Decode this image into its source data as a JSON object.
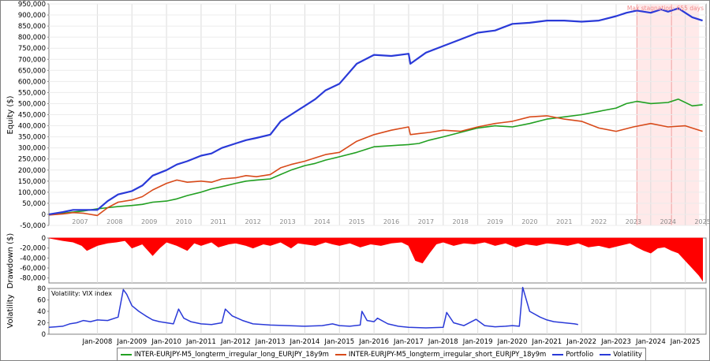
{
  "chart_data": [
    {
      "type": "line",
      "ylabel": "Equity ($)",
      "ylim": [
        -50000,
        950000
      ],
      "yticks": [
        950000,
        900000,
        850000,
        800000,
        750000,
        700000,
        650000,
        600000,
        550000,
        500000,
        450000,
        400000,
        350000,
        300000,
        250000,
        200000,
        150000,
        100000,
        50000,
        0,
        -50000
      ],
      "ytick_labels": [
        "950,000",
        "900,000",
        "850,000",
        "800,000",
        "750,000",
        "700,000",
        "650,000",
        "600,000",
        "550,000",
        "500,000",
        "450,000",
        "400,000",
        "350,000",
        "300,000",
        "250,000",
        "200,000",
        "150,000",
        "100,000",
        "50,000",
        "0",
        "-50,000"
      ],
      "year_labels": [
        "2007",
        "2008",
        "2009",
        "2010",
        "2011",
        "2012",
        "2013",
        "2014",
        "2015",
        "2016",
        "2017",
        "2018",
        "2019",
        "2020",
        "2021",
        "2022",
        "2023",
        "2024",
        "2025"
      ],
      "annotation": "Max stagnation: 655 days",
      "stagnation_range": [
        2023.6,
        2025.4
      ],
      "grid": true,
      "series": [
        {
          "name": "INTER-EURJPY-M5_longterm_irregular_long_EURJPY_18y9m",
          "color": "#22a022",
          "x": [
            2006.6,
            2007.0,
            2007.3,
            2007.6,
            2008.0,
            2008.3,
            2008.6,
            2009.0,
            2009.3,
            2009.6,
            2010.0,
            2010.3,
            2010.6,
            2011.0,
            2011.3,
            2011.6,
            2012.0,
            2012.3,
            2012.6,
            2013.0,
            2013.3,
            2013.6,
            2014.0,
            2014.3,
            2014.6,
            2015.0,
            2015.5,
            2016.0,
            2016.5,
            2017.0,
            2017.3,
            2017.6,
            2018.0,
            2018.5,
            2019.0,
            2019.5,
            2020.0,
            2020.5,
            2021.0,
            2021.5,
            2022.0,
            2022.5,
            2023.0,
            2023.3,
            2023.6,
            2024.0,
            2024.5,
            2024.8,
            2025.2,
            2025.5
          ],
          "y": [
            -2000,
            5000,
            10000,
            15000,
            25000,
            30000,
            35000,
            40000,
            45000,
            55000,
            60000,
            70000,
            85000,
            100000,
            115000,
            125000,
            140000,
            150000,
            155000,
            160000,
            180000,
            200000,
            220000,
            230000,
            245000,
            260000,
            280000,
            305000,
            310000,
            315000,
            320000,
            335000,
            350000,
            370000,
            390000,
            400000,
            395000,
            410000,
            430000,
            440000,
            450000,
            465000,
            480000,
            500000,
            510000,
            500000,
            505000,
            520000,
            490000,
            495000
          ]
        },
        {
          "name": "INTER-EURJPY-M5_longterm_irregular_short_EURJPY_18y9m",
          "color": "#d84a1a",
          "x": [
            2006.6,
            2007.0,
            2007.3,
            2007.6,
            2008.0,
            2008.3,
            2008.6,
            2009.0,
            2009.3,
            2009.6,
            2010.0,
            2010.3,
            2010.6,
            2011.0,
            2011.3,
            2011.6,
            2012.0,
            2012.3,
            2012.6,
            2013.0,
            2013.3,
            2013.6,
            2014.0,
            2014.3,
            2014.6,
            2015.0,
            2015.5,
            2016.0,
            2016.5,
            2017.0,
            2017.05,
            2017.3,
            2017.6,
            2018.0,
            2018.5,
            2019.0,
            2019.5,
            2020.0,
            2020.5,
            2021.0,
            2021.5,
            2022.0,
            2022.5,
            2023.0,
            2023.5,
            2024.0,
            2024.5,
            2025.0,
            2025.5
          ],
          "y": [
            -3000,
            2000,
            8000,
            5000,
            -5000,
            30000,
            55000,
            65000,
            80000,
            110000,
            140000,
            155000,
            145000,
            150000,
            145000,
            160000,
            165000,
            175000,
            170000,
            180000,
            210000,
            225000,
            240000,
            255000,
            270000,
            280000,
            330000,
            360000,
            380000,
            395000,
            360000,
            365000,
            370000,
            380000,
            375000,
            395000,
            410000,
            420000,
            440000,
            445000,
            430000,
            420000,
            390000,
            375000,
            395000,
            410000,
            395000,
            400000,
            375000
          ]
        },
        {
          "name": "Portfolio",
          "color": "#2a3ad8",
          "x": [
            2006.6,
            2007.0,
            2007.3,
            2007.6,
            2008.0,
            2008.3,
            2008.6,
            2009.0,
            2009.3,
            2009.6,
            2010.0,
            2010.3,
            2010.6,
            2011.0,
            2011.3,
            2011.6,
            2012.0,
            2012.3,
            2012.6,
            2013.0,
            2013.3,
            2013.6,
            2014.0,
            2014.3,
            2014.6,
            2015.0,
            2015.5,
            2016.0,
            2016.5,
            2017.0,
            2017.05,
            2017.5,
            2018.0,
            2018.5,
            2019.0,
            2019.5,
            2020.0,
            2020.5,
            2021.0,
            2021.5,
            2022.0,
            2022.5,
            2023.0,
            2023.3,
            2023.6,
            2024.0,
            2024.3,
            2024.5,
            2024.8,
            2025.2,
            2025.5
          ],
          "y": [
            0,
            10000,
            20000,
            20000,
            20000,
            60000,
            90000,
            105000,
            130000,
            175000,
            200000,
            225000,
            240000,
            265000,
            275000,
            300000,
            320000,
            335000,
            345000,
            360000,
            420000,
            450000,
            490000,
            520000,
            560000,
            590000,
            680000,
            720000,
            715000,
            725000,
            680000,
            730000,
            760000,
            790000,
            820000,
            830000,
            860000,
            865000,
            875000,
            875000,
            870000,
            875000,
            895000,
            910000,
            920000,
            910000,
            925000,
            915000,
            930000,
            890000,
            875000
          ]
        }
      ]
    },
    {
      "type": "area",
      "ylabel": "Drawdown ($)",
      "ylim": [
        -90000,
        0
      ],
      "yticks": [
        0,
        -20000,
        -40000,
        -60000,
        -80000
      ],
      "ytick_labels": [
        "0",
        "-20,000",
        "-40,000",
        "-60,000",
        "-80,000"
      ],
      "color": "#ff0000",
      "x": [
        2006.6,
        2007.0,
        2007.3,
        2007.55,
        2007.7,
        2008.0,
        2008.3,
        2008.55,
        2008.8,
        2009.0,
        2009.3,
        2009.6,
        2009.8,
        2010.0,
        2010.3,
        2010.6,
        2010.8,
        2011.0,
        2011.3,
        2011.5,
        2011.8,
        2012.0,
        2012.3,
        2012.5,
        2012.8,
        2013.0,
        2013.3,
        2013.6,
        2013.8,
        2014.0,
        2014.3,
        2014.6,
        2014.8,
        2015.0,
        2015.3,
        2015.6,
        2015.9,
        2016.2,
        2016.5,
        2016.8,
        2017.0,
        2017.2,
        2017.4,
        2017.6,
        2017.8,
        2018.0,
        2018.3,
        2018.6,
        2018.9,
        2019.2,
        2019.5,
        2019.8,
        2020.1,
        2020.4,
        2020.7,
        2021.0,
        2021.3,
        2021.6,
        2021.9,
        2022.2,
        2022.5,
        2022.8,
        2023.1,
        2023.4,
        2023.6,
        2023.8,
        2024.0,
        2024.2,
        2024.4,
        2024.6,
        2024.8,
        2025.0,
        2025.2,
        2025.4,
        2025.5
      ],
      "y": [
        0,
        -5000,
        -8000,
        -15000,
        -25000,
        -15000,
        -10000,
        -8000,
        -5000,
        -20000,
        -12000,
        -35000,
        -20000,
        -8000,
        -15000,
        -25000,
        -10000,
        -15000,
        -8000,
        -18000,
        -12000,
        -10000,
        -15000,
        -20000,
        -12000,
        -15000,
        -8000,
        -20000,
        -10000,
        -12000,
        -15000,
        -8000,
        -12000,
        -15000,
        -10000,
        -18000,
        -12000,
        -15000,
        -10000,
        -8000,
        -15000,
        -45000,
        -50000,
        -30000,
        -12000,
        -8000,
        -15000,
        -10000,
        -12000,
        -8000,
        -15000,
        -10000,
        -18000,
        -12000,
        -15000,
        -10000,
        -12000,
        -15000,
        -10000,
        -18000,
        -15000,
        -20000,
        -15000,
        -10000,
        -18000,
        -25000,
        -30000,
        -20000,
        -18000,
        -25000,
        -30000,
        -45000,
        -60000,
        -75000,
        -85000
      ]
    },
    {
      "type": "line",
      "title": "Volatility: VIX index",
      "ylabel": "Volatility",
      "ylim": [
        0,
        80
      ],
      "yticks": [
        80,
        60,
        40,
        20,
        0
      ],
      "ytick_labels": [
        "80",
        "60",
        "40",
        "20",
        "0"
      ],
      "x_labels": [
        "Jan-2008",
        "Jan-2009",
        "Jan-2010",
        "Jan-2011",
        "Jan-2012",
        "Jan-2013",
        "Jan-2014",
        "Jan-2015",
        "Jan-2016",
        "Jan-2017",
        "Jan-2018",
        "Jan-2019",
        "Jan-2020",
        "Jan-2021",
        "Jan-2022",
        "Jan-2023",
        "Jan-2024",
        "Jan-2025"
      ],
      "series": [
        {
          "name": "Volatility",
          "color": "#2a3ad8",
          "x": [
            2006.6,
            2006.8,
            2007.0,
            2007.2,
            2007.4,
            2007.6,
            2007.8,
            2008.0,
            2008.3,
            2008.6,
            2008.75,
            2008.85,
            2009.0,
            2009.2,
            2009.4,
            2009.6,
            2009.8,
            2010.0,
            2010.2,
            2010.35,
            2010.5,
            2010.7,
            2011.0,
            2011.3,
            2011.6,
            2011.7,
            2011.9,
            2012.2,
            2012.5,
            2012.8,
            2013.0,
            2013.5,
            2014.0,
            2014.5,
            2014.8,
            2015.0,
            2015.3,
            2015.6,
            2015.65,
            2015.8,
            2016.0,
            2016.1,
            2016.4,
            2016.7,
            2017.0,
            2017.5,
            2018.0,
            2018.1,
            2018.3,
            2018.6,
            2018.95,
            2019.2,
            2019.5,
            2019.8,
            2020.0,
            2020.2,
            2020.3,
            2020.5,
            2020.8,
            2021.0,
            2021.2,
            2021.5,
            2021.8,
            2021.9
          ],
          "y": [
            12,
            13,
            14,
            18,
            20,
            24,
            22,
            25,
            24,
            30,
            78,
            70,
            50,
            40,
            32,
            25,
            22,
            20,
            18,
            44,
            28,
            22,
            18,
            17,
            20,
            44,
            32,
            24,
            18,
            17,
            16,
            15,
            14,
            15,
            18,
            15,
            14,
            16,
            40,
            24,
            22,
            28,
            18,
            14,
            12,
            11,
            12,
            38,
            20,
            15,
            26,
            15,
            13,
            14,
            15,
            14,
            82,
            40,
            30,
            25,
            22,
            20,
            18,
            17
          ]
        }
      ]
    }
  ],
  "legend": [
    {
      "label": "INTER-EURJPY-M5_longterm_irregular_long_EURJPY_18y9m",
      "color": "#22a022"
    },
    {
      "label": "INTER-EURJPY-M5_longterm_irregular_short_EURJPY_18y9m",
      "color": "#d84a1a"
    },
    {
      "label": "Portfolio",
      "color": "#2a3ad8"
    },
    {
      "label": "Volatility",
      "color": "#2a3ad8"
    }
  ]
}
